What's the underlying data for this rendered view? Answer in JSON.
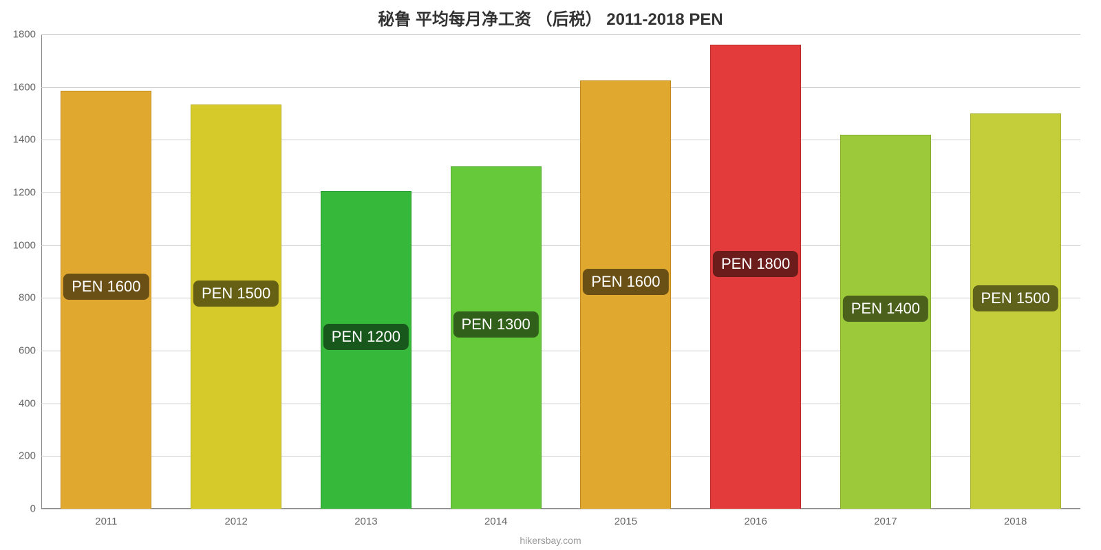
{
  "chart": {
    "type": "bar",
    "title": "秘鲁 平均每月净工资 （后税） 2011-2018 PEN",
    "title_fontsize": 24,
    "title_color": "#333333",
    "background_color": "#ffffff",
    "credit": "hikersbay.com",
    "credit_color": "#999999",
    "credit_fontsize": 14,
    "axis_color": "#888888",
    "grid_color": "#cccccc",
    "tick_label_color": "#666666",
    "tick_label_fontsize": 15,
    "ylim": [
      0,
      1800
    ],
    "yticks": [
      0,
      200,
      400,
      600,
      800,
      1000,
      1200,
      1400,
      1600,
      1800
    ],
    "bar_width_ratio": 0.7,
    "bar_label_fontsize": 22,
    "bar_label_bg": "rgba(0,0,0,0.52)",
    "bar_label_color": "#ffffff",
    "categories": [
      "2011",
      "2012",
      "2013",
      "2014",
      "2015",
      "2016",
      "2017",
      "2018"
    ],
    "values": [
      1585,
      1535,
      1205,
      1300,
      1625,
      1760,
      1420,
      1500
    ],
    "bar_colors": [
      "#e0a82e",
      "#d6c92a",
      "#36b83b",
      "#66c93a",
      "#e0a82e",
      "#e33b3b",
      "#9cc93a",
      "#c4cd3a"
    ],
    "bar_border_colors": [
      "#c08a1e",
      "#b8ad1e",
      "#2a9a2f",
      "#56ab2e",
      "#c08a1e",
      "#b82c2c",
      "#84ab2e",
      "#a6af2e"
    ],
    "bar_labels": [
      "PEN 1600",
      "PEN 1500",
      "PEN 1200",
      "PEN 1300",
      "PEN 1600",
      "PEN 1800",
      "PEN 1400",
      "PEN 1500"
    ]
  }
}
